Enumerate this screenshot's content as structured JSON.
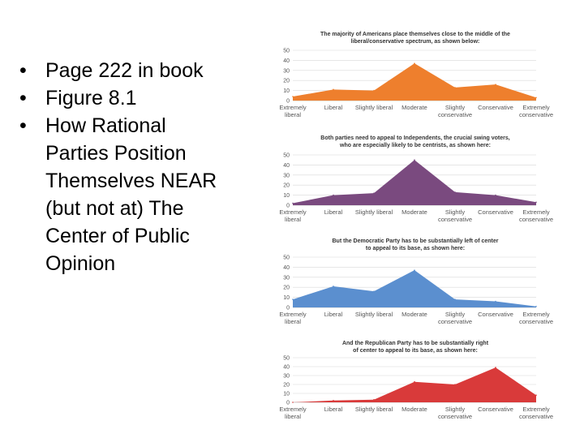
{
  "bullets": [
    "Page 222 in book",
    "Figure 8.1",
    "How Rational Parties Position Themselves NEAR (but not at) The Center of Public Opinion"
  ],
  "chart_data": [
    {
      "type": "area",
      "title_lines": [
        "The majority of Americans place themselves close to the middle of the",
        "liberal/conservative spectrum, as shown below:"
      ],
      "categories": [
        [
          "Extremely",
          "liberal"
        ],
        [
          "Liberal"
        ],
        [
          "Slightly liberal"
        ],
        [
          "Moderate"
        ],
        [
          "Slightly",
          "conservative"
        ],
        [
          "Conservative"
        ],
        [
          "Extremely",
          "conservative"
        ]
      ],
      "values": [
        4,
        11,
        10,
        37,
        13,
        16,
        3
      ],
      "ylim": [
        0,
        50
      ],
      "yticks": [
        "0",
        "10",
        "20",
        "30",
        "40",
        "50"
      ],
      "color": "#ee7f2d"
    },
    {
      "type": "area",
      "title_lines": [
        "Both parties need to appeal to Independents, the crucial swing voters,",
        "who are especially likely to be centrists, as shown here:"
      ],
      "categories": [
        [
          "Extremely",
          "liberal"
        ],
        [
          "Liberal"
        ],
        [
          "Slightly liberal"
        ],
        [
          "Moderate"
        ],
        [
          "Slightly",
          "conservative"
        ],
        [
          "Conservative"
        ],
        [
          "Extremely",
          "conservative"
        ]
      ],
      "values": [
        2,
        10,
        12,
        45,
        13,
        10,
        3
      ],
      "ylim": [
        0,
        50
      ],
      "yticks": [
        "0",
        "10",
        "20",
        "30",
        "40",
        "50"
      ],
      "color": "#7a4a7f"
    },
    {
      "type": "area",
      "title_lines": [
        "But the Democratic Party has to be substantially left of center",
        "to appeal to its base, as shown here:"
      ],
      "categories": [
        [
          "Extremely",
          "liberal"
        ],
        [
          "Liberal"
        ],
        [
          "Slightly liberal"
        ],
        [
          "Moderate"
        ],
        [
          "Slightly",
          "conservative"
        ],
        [
          "Conservative"
        ],
        [
          "Extremely",
          "conservative"
        ]
      ],
      "values": [
        8,
        21,
        16,
        37,
        8,
        6,
        1
      ],
      "ylim": [
        0,
        50
      ],
      "yticks": [
        "0",
        "10",
        "20",
        "30",
        "40",
        "50"
      ],
      "color": "#5b8fcf"
    },
    {
      "type": "area",
      "title_lines": [
        "And the Republican Party has to be substantially right",
        "of center to appeal to its base, as shown here:"
      ],
      "categories": [
        [
          "Extremely",
          "liberal"
        ],
        [
          "Liberal"
        ],
        [
          "Slightly liberal"
        ],
        [
          "Moderate"
        ],
        [
          "Slightly",
          "conservative"
        ],
        [
          "Conservative"
        ],
        [
          "Extremely",
          "conservative"
        ]
      ],
      "values": [
        0,
        2,
        3,
        23,
        20,
        39,
        8
      ],
      "ylim": [
        0,
        50
      ],
      "yticks": [
        "0",
        "10",
        "20",
        "30",
        "40",
        "50"
      ],
      "color": "#d93a3a"
    }
  ]
}
